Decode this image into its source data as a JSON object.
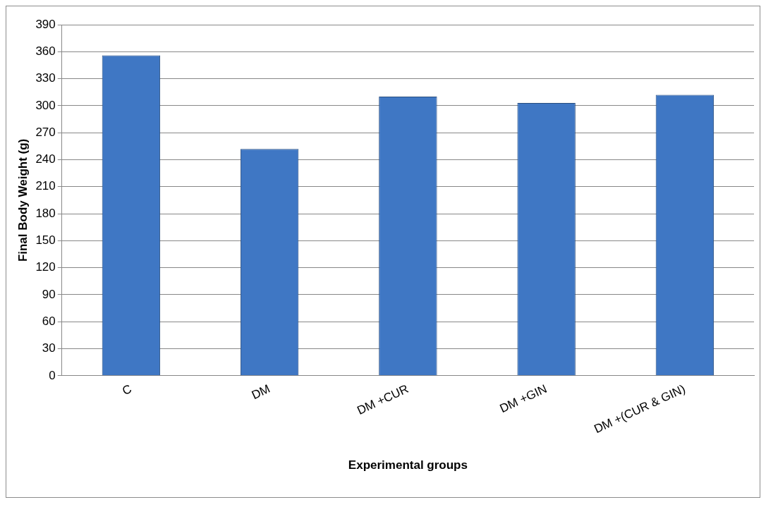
{
  "chart_data": {
    "type": "bar",
    "xlabel": "Experimental groups",
    "ylabel": "Final Body Weight (g)",
    "categories": [
      "C",
      "DM",
      "DM +CUR",
      "DM +GIN",
      "DM +(CUR & GIN)"
    ],
    "values": [
      356,
      252,
      310,
      303,
      312
    ],
    "color": "#3f77c4",
    "ylim": [
      0,
      390
    ],
    "yticks": [
      0,
      30,
      60,
      90,
      120,
      150,
      180,
      210,
      240,
      270,
      300,
      330,
      360,
      390
    ],
    "grid": "y"
  }
}
